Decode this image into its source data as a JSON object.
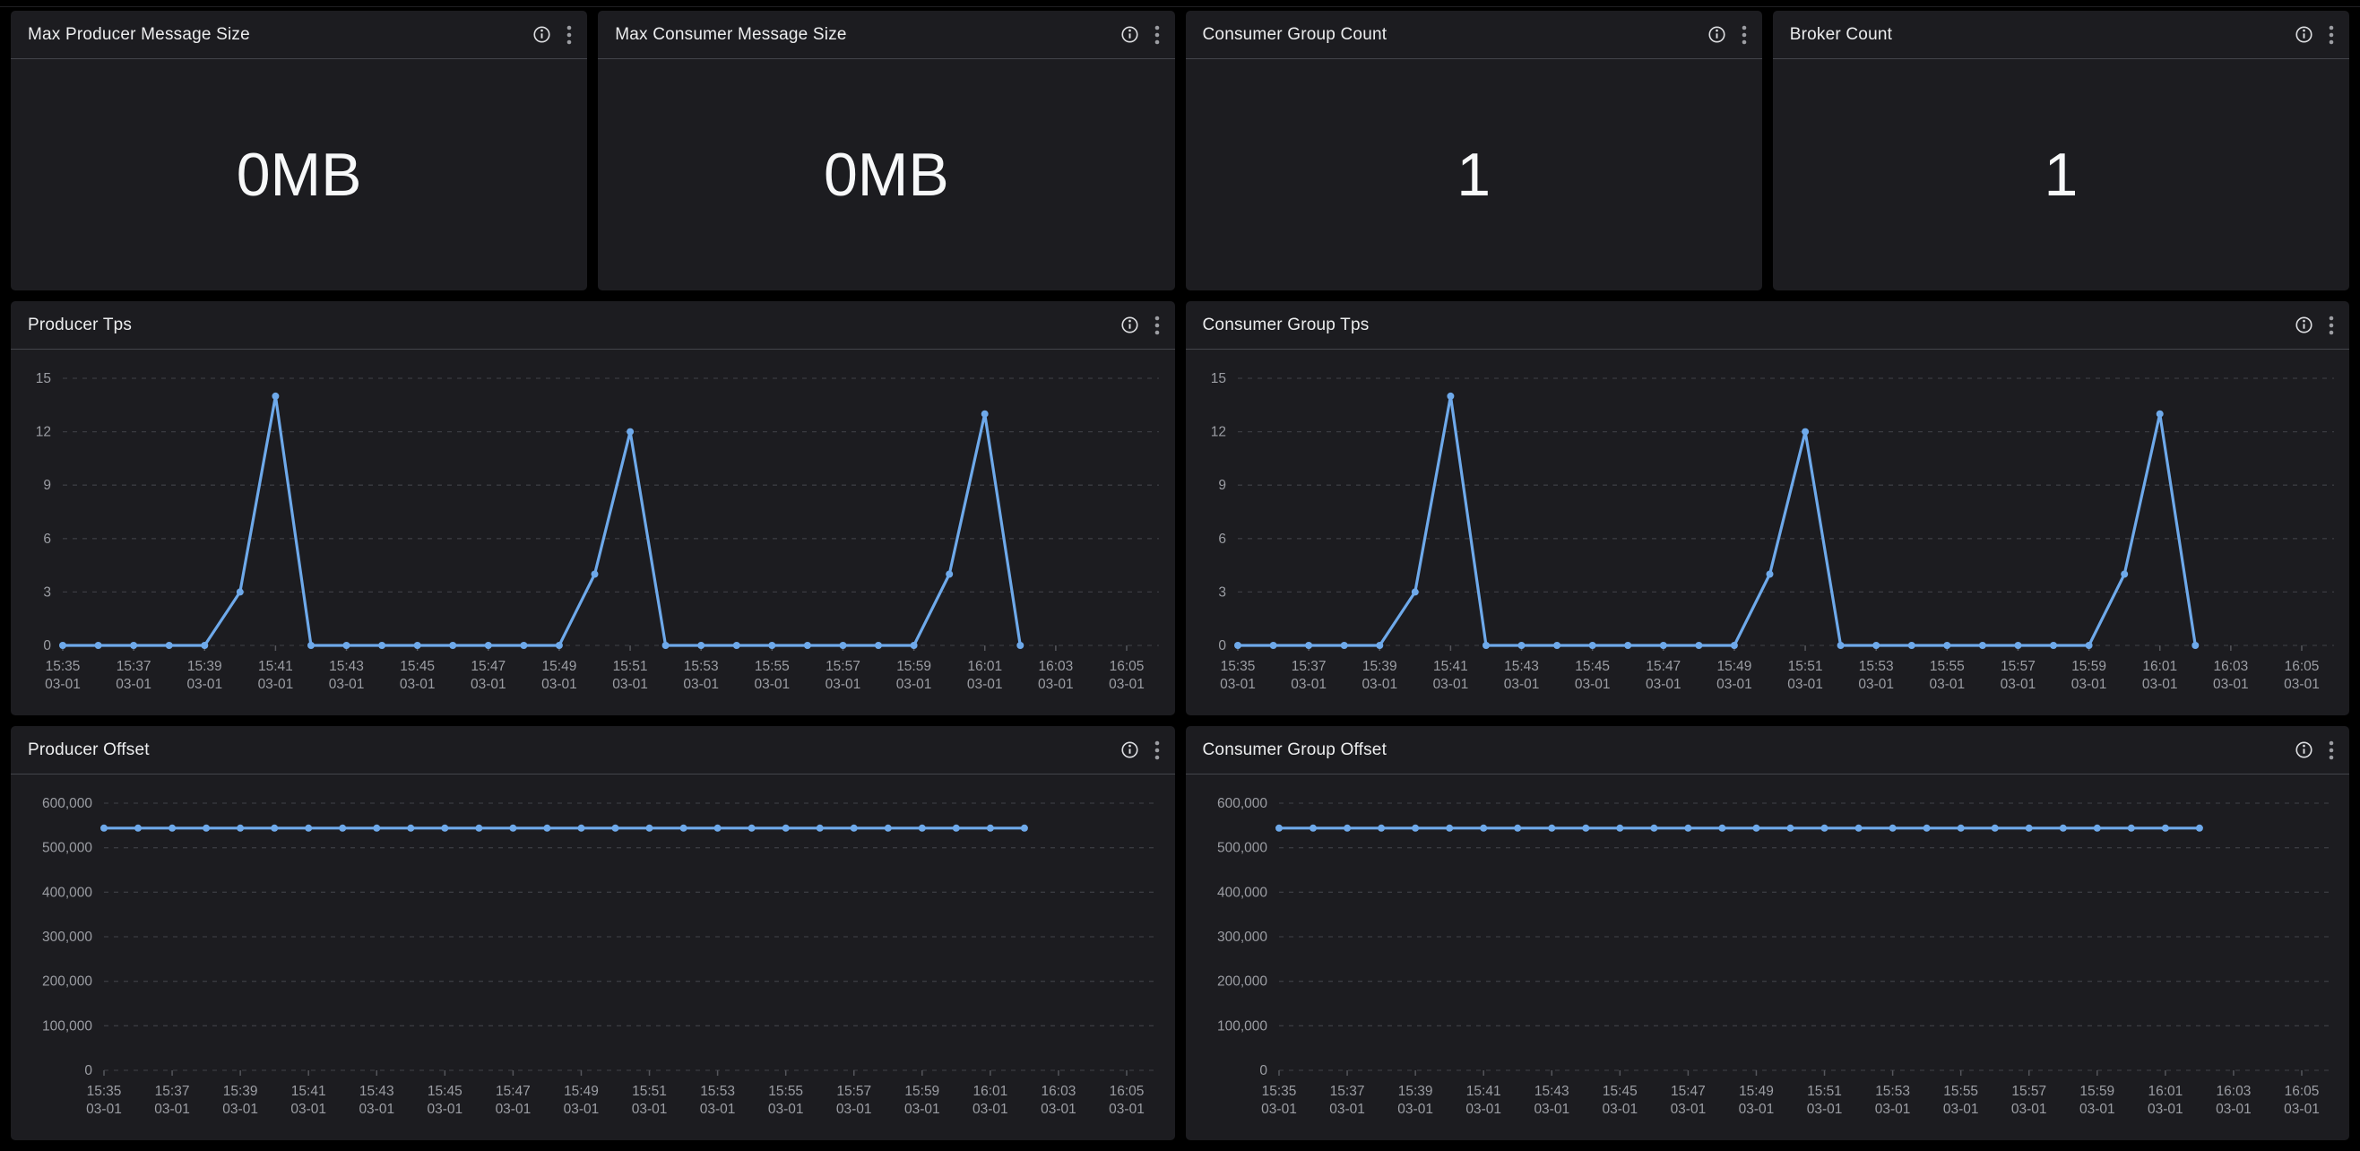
{
  "page": {
    "background": "#000000"
  },
  "colors": {
    "panel_bg": "#1c1c20",
    "header_divider": "#43444a",
    "title_text": "#ecedee",
    "axis_text": "#9b9da3",
    "gridline": "#3a3b41",
    "tick_mark": "#55565c",
    "line_blue": "#6ea9ea",
    "stat_text": "#f7f8f9"
  },
  "icons": {
    "info": "info-circle-icon",
    "menu": "kebab-vertical-menu-icon"
  },
  "stat_panels": [
    {
      "title": "Max Producer Message Size",
      "value": "0MB"
    },
    {
      "title": "Max Consumer Message Size",
      "value": "0MB"
    },
    {
      "title": "Consumer Group Count",
      "value": "1"
    },
    {
      "title": "Broker Count",
      "value": "1"
    }
  ],
  "chart_data": [
    {
      "type": "line",
      "title": "Producer Tps",
      "legend": "none",
      "grid": "horizontal-dashed",
      "x_date": "03-01",
      "x_times": [
        "15:35",
        "15:36",
        "15:37",
        "15:38",
        "15:39",
        "15:40",
        "15:41",
        "15:42",
        "15:43",
        "15:44",
        "15:45",
        "15:46",
        "15:47",
        "15:48",
        "15:49",
        "15:50",
        "15:51",
        "15:52",
        "15:53",
        "15:54",
        "15:55",
        "15:56",
        "15:57",
        "15:58",
        "15:59",
        "16:00",
        "16:01",
        "16:02"
      ],
      "values": [
        0,
        0,
        0,
        0,
        0,
        3,
        14,
        0,
        0,
        0,
        0,
        0,
        0,
        0,
        0,
        4,
        12,
        0,
        0,
        0,
        0,
        0,
        0,
        0,
        0,
        4,
        13,
        0
      ],
      "ylim": [
        0,
        15
      ],
      "yticks": [
        0,
        3,
        6,
        9,
        12,
        15
      ],
      "ytick_labels": [
        "0",
        "3",
        "6",
        "9",
        "12",
        "15"
      ],
      "xtick_labels": [
        "15:35",
        "15:37",
        "15:39",
        "15:41",
        "15:43",
        "15:45",
        "15:47",
        "15:49",
        "15:51",
        "15:53",
        "15:55",
        "15:57",
        "15:59",
        "16:01",
        "16:03",
        "16:05"
      ],
      "xtick_minute_step": 2,
      "line_color": "#6ea9ea"
    },
    {
      "type": "line",
      "title": "Consumer Group Tps",
      "legend": "none",
      "grid": "horizontal-dashed",
      "x_date": "03-01",
      "x_times": [
        "15:35",
        "15:36",
        "15:37",
        "15:38",
        "15:39",
        "15:40",
        "15:41",
        "15:42",
        "15:43",
        "15:44",
        "15:45",
        "15:46",
        "15:47",
        "15:48",
        "15:49",
        "15:50",
        "15:51",
        "15:52",
        "15:53",
        "15:54",
        "15:55",
        "15:56",
        "15:57",
        "15:58",
        "15:59",
        "16:00",
        "16:01",
        "16:02"
      ],
      "values": [
        0,
        0,
        0,
        0,
        0,
        3,
        14,
        0,
        0,
        0,
        0,
        0,
        0,
        0,
        0,
        4,
        12,
        0,
        0,
        0,
        0,
        0,
        0,
        0,
        0,
        4,
        13,
        0
      ],
      "ylim": [
        0,
        15
      ],
      "yticks": [
        0,
        3,
        6,
        9,
        12,
        15
      ],
      "ytick_labels": [
        "0",
        "3",
        "6",
        "9",
        "12",
        "15"
      ],
      "xtick_labels": [
        "15:35",
        "15:37",
        "15:39",
        "15:41",
        "15:43",
        "15:45",
        "15:47",
        "15:49",
        "15:51",
        "15:53",
        "15:55",
        "15:57",
        "15:59",
        "16:01",
        "16:03",
        "16:05"
      ],
      "xtick_minute_step": 2,
      "line_color": "#6ea9ea"
    },
    {
      "type": "line",
      "title": "Producer Offset",
      "legend": "none",
      "grid": "horizontal-dashed",
      "x_date": "03-01",
      "x_times": [
        "15:35",
        "15:36",
        "15:37",
        "15:38",
        "15:39",
        "15:40",
        "15:41",
        "15:42",
        "15:43",
        "15:44",
        "15:45",
        "15:46",
        "15:47",
        "15:48",
        "15:49",
        "15:50",
        "15:51",
        "15:52",
        "15:53",
        "15:54",
        "15:55",
        "15:56",
        "15:57",
        "15:58",
        "15:59",
        "16:00",
        "16:01",
        "16:02"
      ],
      "values": [
        544000,
        544000,
        544000,
        544000,
        544000,
        544000,
        544000,
        544000,
        544000,
        544000,
        544000,
        544000,
        544000,
        544000,
        544000,
        544000,
        544000,
        544000,
        544000,
        544000,
        544000,
        544000,
        544000,
        544000,
        544000,
        544000,
        544000,
        544000
      ],
      "ylim": [
        0,
        600000
      ],
      "yticks": [
        0,
        100000,
        200000,
        300000,
        400000,
        500000,
        600000
      ],
      "ytick_labels": [
        "0",
        "100,000",
        "200,000",
        "300,000",
        "400,000",
        "500,000",
        "600,000"
      ],
      "xtick_labels": [
        "15:35",
        "15:37",
        "15:39",
        "15:41",
        "15:43",
        "15:45",
        "15:47",
        "15:49",
        "15:51",
        "15:53",
        "15:55",
        "15:57",
        "15:59",
        "16:01",
        "16:03",
        "16:05"
      ],
      "xtick_minute_step": 2,
      "line_color": "#6ea9ea"
    },
    {
      "type": "line",
      "title": "Consumer Group Offset",
      "legend": "none",
      "grid": "horizontal-dashed",
      "x_date": "03-01",
      "x_times": [
        "15:35",
        "15:36",
        "15:37",
        "15:38",
        "15:39",
        "15:40",
        "15:41",
        "15:42",
        "15:43",
        "15:44",
        "15:45",
        "15:46",
        "15:47",
        "15:48",
        "15:49",
        "15:50",
        "15:51",
        "15:52",
        "15:53",
        "15:54",
        "15:55",
        "15:56",
        "15:57",
        "15:58",
        "15:59",
        "16:00",
        "16:01",
        "16:02"
      ],
      "values": [
        544000,
        544000,
        544000,
        544000,
        544000,
        544000,
        544000,
        544000,
        544000,
        544000,
        544000,
        544000,
        544000,
        544000,
        544000,
        544000,
        544000,
        544000,
        544000,
        544000,
        544000,
        544000,
        544000,
        544000,
        544000,
        544000,
        544000,
        544000
      ],
      "ylim": [
        0,
        600000
      ],
      "yticks": [
        0,
        100000,
        200000,
        300000,
        400000,
        500000,
        600000
      ],
      "ytick_labels": [
        "0",
        "100,000",
        "200,000",
        "300,000",
        "400,000",
        "500,000",
        "600,000"
      ],
      "xtick_labels": [
        "15:35",
        "15:37",
        "15:39",
        "15:41",
        "15:43",
        "15:45",
        "15:47",
        "15:49",
        "15:51",
        "15:53",
        "15:55",
        "15:57",
        "15:59",
        "16:01",
        "16:03",
        "16:05"
      ],
      "xtick_minute_step": 2,
      "line_color": "#6ea9ea"
    }
  ]
}
